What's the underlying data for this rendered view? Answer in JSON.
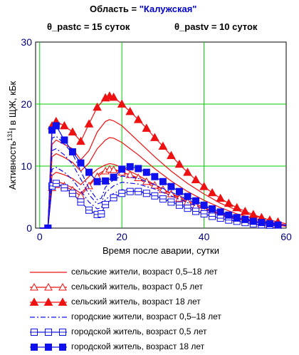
{
  "header": {
    "region_label": "Область = ",
    "region_value": "\"Калужская\"",
    "pastc_label": "θ_pastc = ",
    "pastc_value": "15",
    "pastc_unit": " суток",
    "pastv_label": "θ_pastv = ",
    "pastv_value": "10",
    "pastv_unit": " суток"
  },
  "colors": {
    "red": "#ee1111",
    "blue": "#1010ee",
    "grid": "#00cc00",
    "tick": "#000080"
  },
  "chart_data": {
    "type": "line",
    "xlabel": "Время после аварии, сутки",
    "ylabel_pre": "Активность",
    "ylabel_sup": "131",
    "ylabel_post": "I в ЩЖ, кБк",
    "xlim": [
      -1,
      60
    ],
    "ylim": [
      0,
      30
    ],
    "xticks": [
      "0",
      "20",
      "40",
      "60"
    ],
    "yticks": [
      "0",
      "10",
      "20",
      "30"
    ],
    "grid": true,
    "series": [
      {
        "name": "сельские жители, возраст 0,5–18 лет",
        "color": "#ee1111",
        "style": "solid",
        "marker": "none",
        "x": [
          0,
          2,
          3,
          4,
          6,
          8,
          10,
          12,
          14,
          16,
          17,
          18,
          20,
          24,
          28,
          32,
          36,
          40,
          44,
          48,
          52,
          56,
          60
        ],
        "y": [
          0,
          0,
          13.5,
          14.2,
          13.5,
          12.8,
          11,
          12.5,
          15.5,
          17.2,
          17.5,
          17.3,
          16.5,
          14,
          11.5,
          9.2,
          7.2,
          5.5,
          4,
          2.9,
          2,
          1.3,
          0.7
        ]
      },
      {
        "name": "сельские жители, возраст 0,5–18 лет",
        "color": "#ee1111",
        "style": "solid",
        "marker": "none",
        "x": [
          0,
          2,
          3,
          4,
          6,
          8,
          10,
          12,
          14,
          16,
          17,
          18,
          20,
          24,
          28,
          32,
          36,
          40,
          44,
          48,
          52,
          56,
          60
        ],
        "y": [
          0,
          0,
          11.5,
          12,
          11.4,
          10.6,
          9.2,
          10.5,
          12.8,
          14.2,
          14.6,
          14.5,
          13.8,
          11.8,
          9.6,
          7.6,
          5.9,
          4.5,
          3.3,
          2.3,
          1.6,
          1.0,
          0.5
        ]
      },
      {
        "name": "сельские жители, возраст 0,5–18 лет",
        "color": "#ee1111",
        "style": "solid",
        "marker": "none",
        "x": [
          0,
          2,
          3,
          4,
          6,
          8,
          10,
          12,
          14,
          16,
          17,
          18,
          20,
          24,
          28,
          32,
          36,
          40,
          44,
          48,
          52,
          56,
          60
        ],
        "y": [
          0,
          0,
          8.5,
          9,
          8.6,
          8,
          7,
          8.3,
          9.5,
          10.2,
          10.4,
          10.3,
          9.8,
          8.5,
          7,
          5.6,
          4.4,
          3.3,
          2.4,
          1.7,
          1.1,
          0.7,
          0.4
        ]
      },
      {
        "name": "сельские жители, возраст 0,5–18 лет",
        "color": "#ee1111",
        "style": "solid",
        "marker": "none",
        "x": [
          0,
          2,
          3,
          4,
          6,
          8,
          10,
          12,
          14,
          16,
          17,
          18,
          20,
          24,
          28,
          32,
          36,
          40,
          44,
          48,
          52,
          56,
          60
        ],
        "y": [
          0,
          0,
          7,
          7.6,
          7.1,
          6.5,
          5.6,
          7,
          8.6,
          9.4,
          9.6,
          9.5,
          9.1,
          7.9,
          6.6,
          5.2,
          4.1,
          3.1,
          2.3,
          1.6,
          1.0,
          0.6,
          0.3
        ]
      },
      {
        "name": "сельский житель, возраст 0,5 лет",
        "color": "#ee1111",
        "style": "solid",
        "marker": "triangle-open",
        "x": [
          0,
          2,
          3,
          4,
          6,
          8,
          10,
          12,
          14,
          16,
          17,
          18,
          20,
          22,
          24,
          26,
          28,
          30,
          32,
          34,
          36,
          38,
          40,
          42,
          44,
          46,
          48,
          50,
          52,
          54,
          56,
          58
        ],
        "y": [
          0,
          0,
          6.5,
          7,
          6.8,
          6.1,
          5.2,
          6.8,
          8.3,
          9.2,
          9.5,
          9.4,
          9,
          8.6,
          8.1,
          7.5,
          6.9,
          6.2,
          5.5,
          4.8,
          4.2,
          3.6,
          3.1,
          2.6,
          2.2,
          1.8,
          1.5,
          1.2,
          1.0,
          0.8,
          0.6,
          0.5
        ]
      },
      {
        "name": "сельский житель, возраст 18 лет",
        "color": "#ee1111",
        "style": "solid",
        "marker": "triangle-filled",
        "x": [
          0,
          2,
          3,
          4,
          6,
          8,
          10,
          12,
          14,
          16,
          17,
          18,
          20,
          22,
          24,
          26,
          28,
          30,
          32,
          34,
          36,
          38,
          40,
          42,
          44,
          46,
          48,
          50,
          52,
          54,
          56,
          58
        ],
        "y": [
          0,
          0,
          16.5,
          17.2,
          16.5,
          15.5,
          14,
          16.8,
          19.5,
          21,
          21.3,
          21.1,
          20,
          18.8,
          17.5,
          16.1,
          14.6,
          13.2,
          11.7,
          10.3,
          9,
          7.8,
          6.7,
          5.7,
          4.8,
          4,
          3.3,
          2.7,
          2.2,
          1.7,
          1.3,
          1.0
        ]
      },
      {
        "name": "городские жители, возраст 0,5–18 лет",
        "color": "#1010ee",
        "style": "dashdot",
        "marker": "none",
        "x": [
          0,
          2,
          3,
          4,
          6,
          8,
          10,
          12,
          14,
          15,
          16,
          18,
          20,
          24,
          28,
          32,
          36,
          40,
          44,
          48,
          52,
          56,
          60
        ],
        "y": [
          0,
          0,
          14.5,
          14.8,
          13.6,
          12,
          9.2,
          6.4,
          4.6,
          4.8,
          6.6,
          7.8,
          8.4,
          8,
          7,
          5.8,
          4.6,
          3.5,
          2.6,
          1.9,
          1.3,
          0.9,
          0.5
        ]
      },
      {
        "name": "городские жители, возраст 0,5–18 лет",
        "color": "#1010ee",
        "style": "dashdot",
        "marker": "none",
        "x": [
          0,
          2,
          3,
          4,
          6,
          8,
          10,
          12,
          14,
          15,
          16,
          18,
          20,
          24,
          28,
          32,
          36,
          40,
          44,
          48,
          52,
          56,
          60
        ],
        "y": [
          0,
          0,
          12.5,
          12.8,
          11.8,
          10.3,
          7.9,
          5.4,
          3.9,
          4.1,
          5.7,
          6.8,
          7.4,
          7.1,
          6.3,
          5.2,
          4.1,
          3.1,
          2.3,
          1.7,
          1.2,
          0.8,
          0.4
        ]
      },
      {
        "name": "городские жители, возраст 0,5–18 лет",
        "color": "#1010ee",
        "style": "dashdot",
        "marker": "none",
        "x": [
          0,
          2,
          3,
          4,
          6,
          8,
          10,
          12,
          14,
          15,
          16,
          18,
          20,
          24,
          28,
          32,
          36,
          40,
          44,
          48,
          52,
          56,
          60
        ],
        "y": [
          0,
          0,
          9.5,
          9.8,
          9,
          7.8,
          6,
          4.2,
          3.1,
          3.3,
          4.6,
          5.6,
          6.2,
          6,
          5.3,
          4.4,
          3.5,
          2.7,
          2,
          1.4,
          1.0,
          0.7,
          0.4
        ]
      },
      {
        "name": "городской житель, возраст 0,5 лет",
        "color": "#1010ee",
        "style": "solid",
        "marker": "square-open",
        "x": [
          0,
          2,
          3,
          4,
          6,
          8,
          10,
          12,
          14,
          15,
          16,
          18,
          20,
          22,
          24,
          26,
          28,
          30,
          32,
          34,
          36,
          38,
          40,
          42,
          44,
          46,
          48,
          50,
          52,
          54,
          56,
          58
        ],
        "y": [
          0,
          0,
          6.8,
          7.2,
          6.5,
          5.6,
          4.2,
          2.9,
          2.2,
          2.3,
          3.8,
          4.9,
          5.6,
          5.9,
          5.9,
          5.6,
          5.2,
          4.7,
          4.2,
          3.7,
          3.2,
          2.7,
          2.3,
          1.9,
          1.6,
          1.3,
          1.1,
          0.9,
          0.7,
          0.55,
          0.45,
          0.35
        ]
      },
      {
        "name": "городской житель, возраст 18 лет",
        "color": "#1010ee",
        "style": "solid",
        "marker": "square-filled",
        "x": [
          0,
          2,
          3,
          4,
          6,
          8,
          10,
          12,
          14,
          16,
          18,
          20,
          22,
          24,
          26,
          28,
          30,
          32,
          34,
          36,
          38,
          40,
          42,
          44,
          46,
          48,
          50,
          52,
          54,
          56,
          58
        ],
        "y": [
          0,
          0,
          15.8,
          16.5,
          14.2,
          12.3,
          10.5,
          9,
          7.5,
          7.6,
          8.2,
          9.5,
          9.9,
          9.6,
          9,
          8.3,
          7.5,
          6.7,
          5.9,
          5.1,
          4.4,
          3.7,
          3.1,
          2.6,
          2.1,
          1.7,
          1.4,
          1.1,
          0.9,
          0.7,
          0.5
        ]
      }
    ],
    "legend": [
      {
        "label": "сельские жители, возраст 0,5–18 лет",
        "color": "#ee1111",
        "style": "solid",
        "marker": "none"
      },
      {
        "label": "сельский житель, возраст 0,5 лет",
        "color": "#ee1111",
        "style": "solid",
        "marker": "triangle-open"
      },
      {
        "label": "сельский житель, возраст 18 лет",
        "color": "#ee1111",
        "style": "solid",
        "marker": "triangle-filled"
      },
      {
        "label": "городские жители, возраст 0,5–18 лет",
        "color": "#1010ee",
        "style": "dashdot",
        "marker": "none"
      },
      {
        "label": "городской житель, возраст 0,5 лет",
        "color": "#1010ee",
        "style": "solid",
        "marker": "square-open"
      },
      {
        "label": "городской житель, возраст 18 лет",
        "color": "#1010ee",
        "style": "solid",
        "marker": "square-filled"
      }
    ]
  }
}
